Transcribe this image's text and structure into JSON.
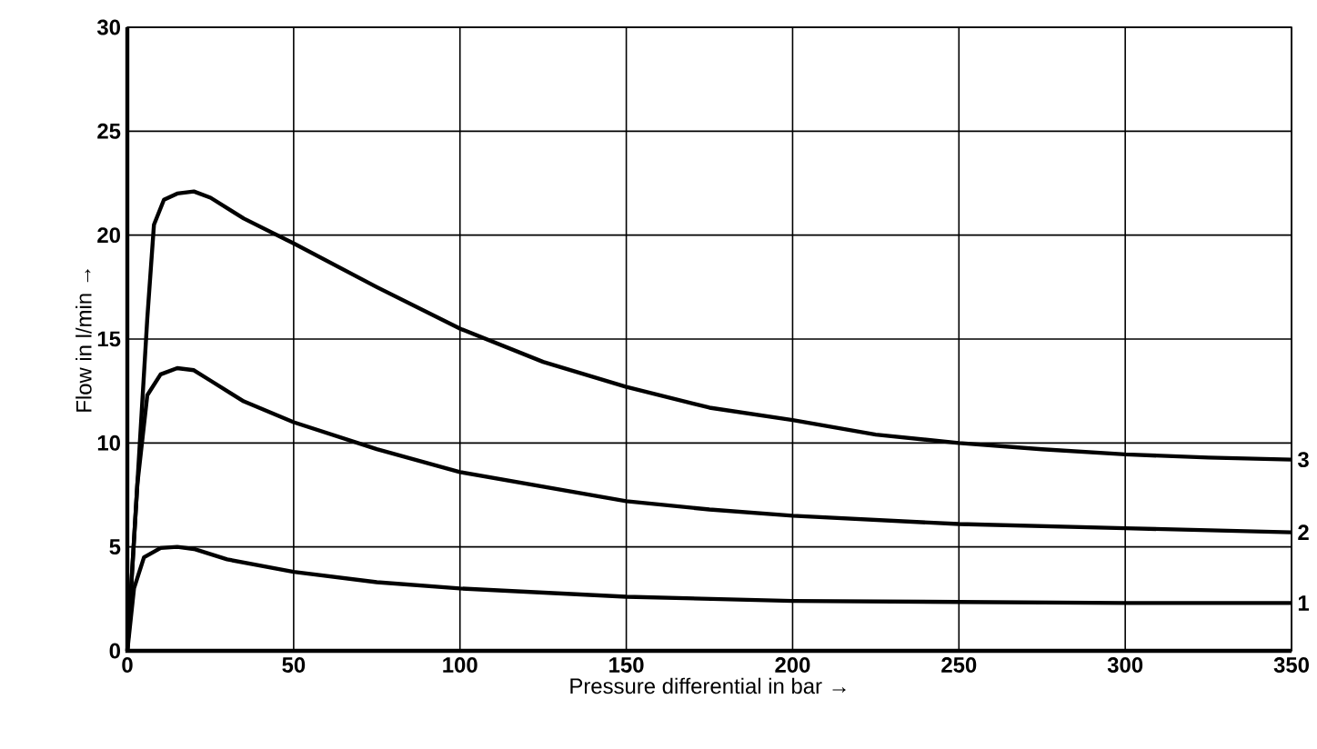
{
  "chart_data": {
    "type": "line",
    "xlabel": "Pressure differential in bar →",
    "ylabel": "Flow in l/min →",
    "xlim": [
      0,
      350
    ],
    "ylim": [
      0,
      30
    ],
    "xticks": [
      0,
      50,
      100,
      150,
      200,
      250,
      300,
      350
    ],
    "yticks": [
      0,
      5,
      10,
      15,
      20,
      25,
      30
    ],
    "grid": true,
    "series": [
      {
        "name": "1",
        "color": "#000000",
        "x": [
          0,
          2,
          5,
          10,
          15,
          20,
          30,
          50,
          75,
          100,
          150,
          200,
          250,
          300,
          350
        ],
        "values": [
          0,
          3,
          4.5,
          4.95,
          5,
          4.9,
          4.4,
          3.8,
          3.3,
          3,
          2.6,
          2.4,
          2.35,
          2.3,
          2.3
        ]
      },
      {
        "name": "2",
        "color": "#000000",
        "x": [
          0,
          3,
          6,
          10,
          15,
          20,
          25,
          35,
          50,
          75,
          100,
          125,
          150,
          175,
          200,
          250,
          300,
          350
        ],
        "values": [
          0,
          8,
          12.3,
          13.3,
          13.6,
          13.5,
          13,
          12,
          11,
          9.7,
          8.6,
          7.9,
          7.2,
          6.8,
          6.5,
          6.1,
          5.9,
          5.7
        ]
      },
      {
        "name": "3",
        "color": "#000000",
        "x": [
          0,
          3,
          6,
          8,
          11,
          15,
          20,
          25,
          35,
          50,
          75,
          100,
          125,
          150,
          175,
          200,
          225,
          250,
          275,
          300,
          325,
          350
        ],
        "values": [
          0,
          8,
          16,
          20.5,
          21.7,
          22,
          22.1,
          21.8,
          20.8,
          19.6,
          17.5,
          15.5,
          13.9,
          12.7,
          11.7,
          11.1,
          10.4,
          10,
          9.7,
          9.45,
          9.3,
          9.2
        ]
      }
    ]
  }
}
